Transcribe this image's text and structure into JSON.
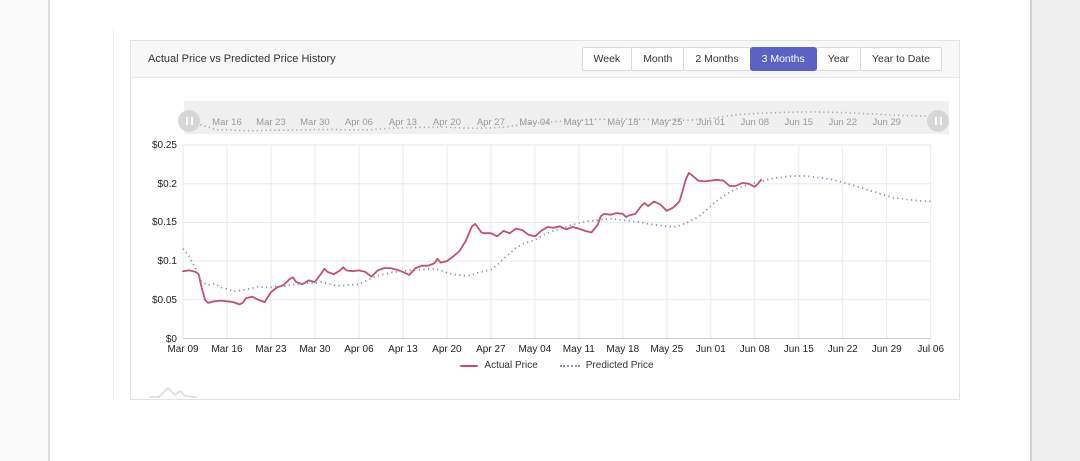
{
  "header": {
    "title": "Actual Price vs Predicted Price History",
    "active_color": "#5a63c4",
    "ranges": [
      {
        "label": "Week",
        "active": false
      },
      {
        "label": "Month",
        "active": false
      },
      {
        "label": "2 Months",
        "active": false
      },
      {
        "label": "3 Months",
        "active": true
      },
      {
        "label": "Year",
        "active": false
      },
      {
        "label": "Year to Date",
        "active": false
      }
    ]
  },
  "chart_data": {
    "type": "line",
    "title": "Actual Price vs Predicted Price History",
    "x_tick_labels": [
      "Mar 09",
      "Mar 16",
      "Mar 23",
      "Mar 30",
      "Apr 06",
      "Apr 13",
      "Apr 20",
      "Apr 27",
      "May 04",
      "May 11",
      "May 18",
      "May 25",
      "Jun 01",
      "Jun 08",
      "Jun 15",
      "Jun 22",
      "Jun 29",
      "Jul 06"
    ],
    "y_tick_labels": [
      "$0",
      "$0.05",
      "$0.1",
      "$0.15",
      "$0.2",
      "$0.25"
    ],
    "y_min": 0,
    "y_max": 0.25,
    "y_step": 0.05,
    "days_total": 119,
    "days_per_tick": 7,
    "grid": true,
    "legend_position": "bottom",
    "navigator": {
      "labels": [
        "Mar 16",
        "Mar 23",
        "Mar 30",
        "Apr 06",
        "Apr 13",
        "Apr 20",
        "Apr 27",
        "May 04",
        "May 11",
        "May 18",
        "May 25",
        "Jun 01",
        "Jun 08",
        "Jun 15",
        "Jun 22",
        "Jun 29"
      ],
      "preview_of": "Predicted Price"
    },
    "series": [
      {
        "name": "Actual Price",
        "style": "solid",
        "color": "#c2516c",
        "points": [
          [
            0,
            0.087
          ],
          [
            1,
            0.088
          ],
          [
            2,
            0.086
          ],
          [
            2.5,
            0.083
          ],
          [
            3,
            0.065
          ],
          [
            3.5,
            0.05
          ],
          [
            4,
            0.046
          ],
          [
            5,
            0.048
          ],
          [
            6,
            0.049
          ],
          [
            7,
            0.048
          ],
          [
            8,
            0.047
          ],
          [
            9,
            0.044
          ],
          [
            9.5,
            0.046
          ],
          [
            10,
            0.052
          ],
          [
            11,
            0.054
          ],
          [
            12,
            0.05
          ],
          [
            13,
            0.047
          ],
          [
            14,
            0.06
          ],
          [
            15,
            0.066
          ],
          [
            16,
            0.069
          ],
          [
            17,
            0.077
          ],
          [
            17.5,
            0.079
          ],
          [
            18,
            0.073
          ],
          [
            19,
            0.07
          ],
          [
            20,
            0.075
          ],
          [
            21,
            0.073
          ],
          [
            22,
            0.084
          ],
          [
            22.5,
            0.09
          ],
          [
            23,
            0.086
          ],
          [
            24,
            0.083
          ],
          [
            25,
            0.088
          ],
          [
            25.5,
            0.092
          ],
          [
            26,
            0.088
          ],
          [
            27,
            0.087
          ],
          [
            28,
            0.088
          ],
          [
            29,
            0.086
          ],
          [
            30,
            0.08
          ],
          [
            31,
            0.088
          ],
          [
            32,
            0.091
          ],
          [
            33,
            0.091
          ],
          [
            34,
            0.089
          ],
          [
            35,
            0.086
          ],
          [
            36,
            0.082
          ],
          [
            37,
            0.091
          ],
          [
            38,
            0.094
          ],
          [
            39,
            0.094
          ],
          [
            40,
            0.097
          ],
          [
            40.5,
            0.103
          ],
          [
            41,
            0.098
          ],
          [
            42,
            0.1
          ],
          [
            43,
            0.106
          ],
          [
            44,
            0.113
          ],
          [
            45,
            0.126
          ],
          [
            46,
            0.145
          ],
          [
            46.5,
            0.148
          ],
          [
            47.5,
            0.137
          ],
          [
            48,
            0.136
          ],
          [
            49,
            0.136
          ],
          [
            50,
            0.132
          ],
          [
            51,
            0.139
          ],
          [
            52,
            0.136
          ],
          [
            53,
            0.142
          ],
          [
            54,
            0.14
          ],
          [
            55,
            0.134
          ],
          [
            56,
            0.132
          ],
          [
            57,
            0.139
          ],
          [
            58,
            0.144
          ],
          [
            59,
            0.143
          ],
          [
            60,
            0.145
          ],
          [
            61,
            0.141
          ],
          [
            62,
            0.144
          ],
          [
            63,
            0.142
          ],
          [
            64,
            0.139
          ],
          [
            65,
            0.137
          ],
          [
            66,
            0.147
          ],
          [
            66.5,
            0.158
          ],
          [
            67,
            0.161
          ],
          [
            68,
            0.16
          ],
          [
            69,
            0.162
          ],
          [
            70,
            0.161
          ],
          [
            70.5,
            0.157
          ],
          [
            71,
            0.159
          ],
          [
            72,
            0.161
          ],
          [
            73,
            0.172
          ],
          [
            73.5,
            0.175
          ],
          [
            74,
            0.171
          ],
          [
            75,
            0.177
          ],
          [
            76,
            0.173
          ],
          [
            77,
            0.165
          ],
          [
            78,
            0.169
          ],
          [
            79,
            0.177
          ],
          [
            79.5,
            0.19
          ],
          [
            80,
            0.205
          ],
          [
            80.5,
            0.214
          ],
          [
            81,
            0.211
          ],
          [
            82,
            0.204
          ],
          [
            83,
            0.203
          ],
          [
            84,
            0.204
          ],
          [
            85,
            0.205
          ],
          [
            86,
            0.204
          ],
          [
            87,
            0.197
          ],
          [
            88,
            0.197
          ],
          [
            89,
            0.201
          ],
          [
            90,
            0.2
          ],
          [
            91,
            0.196
          ],
          [
            91.5,
            0.2
          ],
          [
            92,
            0.205
          ]
        ]
      },
      {
        "name": "Predicted Price",
        "style": "dotted",
        "color": "#8690b5",
        "points": [
          [
            0,
            0.116
          ],
          [
            1,
            0.106
          ],
          [
            2,
            0.09
          ],
          [
            3,
            0.073
          ],
          [
            4,
            0.069
          ],
          [
            5,
            0.071
          ],
          [
            6,
            0.066
          ],
          [
            7,
            0.064
          ],
          [
            8,
            0.061
          ],
          [
            9,
            0.062
          ],
          [
            10,
            0.063
          ],
          [
            11,
            0.065
          ],
          [
            12,
            0.067
          ],
          [
            13,
            0.066
          ],
          [
            14,
            0.066
          ],
          [
            15,
            0.068
          ],
          [
            16,
            0.067
          ],
          [
            17,
            0.069
          ],
          [
            18,
            0.07
          ],
          [
            19,
            0.071
          ],
          [
            20,
            0.072
          ],
          [
            21,
            0.071
          ],
          [
            22,
            0.073
          ],
          [
            23,
            0.071
          ],
          [
            24,
            0.069
          ],
          [
            25,
            0.068
          ],
          [
            26,
            0.069
          ],
          [
            28,
            0.07
          ],
          [
            29,
            0.074
          ],
          [
            30,
            0.078
          ],
          [
            31,
            0.081
          ],
          [
            32,
            0.083
          ],
          [
            33,
            0.085
          ],
          [
            34,
            0.086
          ],
          [
            35,
            0.087
          ],
          [
            36,
            0.088
          ],
          [
            38,
            0.089
          ],
          [
            40,
            0.09
          ],
          [
            41,
            0.088
          ],
          [
            42,
            0.085
          ],
          [
            43,
            0.083
          ],
          [
            44,
            0.082
          ],
          [
            45,
            0.081
          ],
          [
            46,
            0.082
          ],
          [
            47,
            0.085
          ],
          [
            48,
            0.087
          ],
          [
            49,
            0.089
          ],
          [
            50,
            0.095
          ],
          [
            51,
            0.103
          ],
          [
            52,
            0.11
          ],
          [
            53,
            0.117
          ],
          [
            54,
            0.122
          ],
          [
            55,
            0.125
          ],
          [
            56,
            0.127
          ],
          [
            57,
            0.132
          ],
          [
            58,
            0.136
          ],
          [
            59,
            0.139
          ],
          [
            60,
            0.142
          ],
          [
            61,
            0.144
          ],
          [
            62,
            0.147
          ],
          [
            63,
            0.149
          ],
          [
            64,
            0.151
          ],
          [
            65,
            0.152
          ],
          [
            66,
            0.153
          ],
          [
            67,
            0.154
          ],
          [
            68,
            0.155
          ],
          [
            69,
            0.154
          ],
          [
            70,
            0.153
          ],
          [
            71,
            0.152
          ],
          [
            72,
            0.151
          ],
          [
            73,
            0.15
          ],
          [
            74,
            0.148
          ],
          [
            75,
            0.147
          ],
          [
            76,
            0.146
          ],
          [
            77,
            0.145
          ],
          [
            78,
            0.144
          ],
          [
            79,
            0.146
          ],
          [
            80,
            0.149
          ],
          [
            81,
            0.153
          ],
          [
            82,
            0.157
          ],
          [
            83,
            0.164
          ],
          [
            84,
            0.171
          ],
          [
            85,
            0.178
          ],
          [
            86,
            0.184
          ],
          [
            87,
            0.189
          ],
          [
            88,
            0.193
          ],
          [
            89,
            0.196
          ],
          [
            90,
            0.199
          ],
          [
            91,
            0.201
          ],
          [
            92,
            0.203
          ],
          [
            93,
            0.205
          ],
          [
            94,
            0.207
          ],
          [
            95,
            0.208
          ],
          [
            96,
            0.209
          ],
          [
            97,
            0.21
          ],
          [
            99,
            0.21
          ],
          [
            101,
            0.208
          ],
          [
            103,
            0.206
          ],
          [
            105,
            0.202
          ],
          [
            107,
            0.197
          ],
          [
            109,
            0.192
          ],
          [
            111,
            0.187
          ],
          [
            113,
            0.182
          ],
          [
            115,
            0.18
          ],
          [
            117,
            0.178
          ],
          [
            119,
            0.177
          ]
        ]
      }
    ]
  }
}
